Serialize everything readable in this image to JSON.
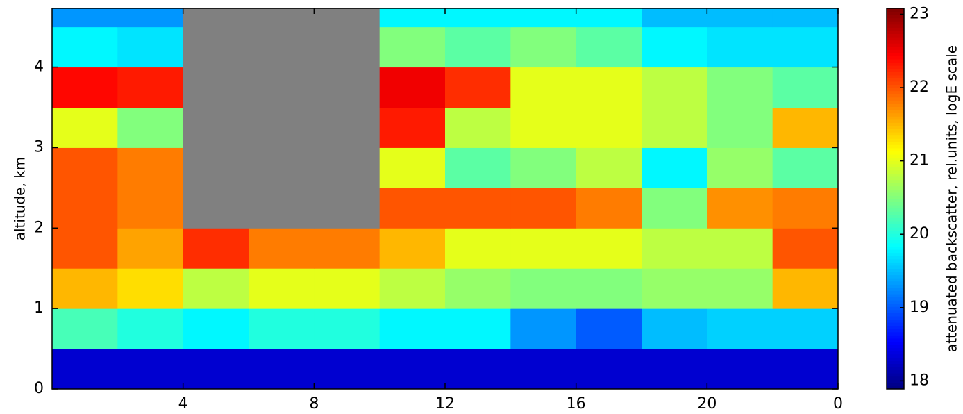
{
  "chart_data": {
    "type": "heatmap",
    "y_label": "altitude, km",
    "colorbar_label": "attenuated backscatter, rel.units, logE scale",
    "x_edges": [
      0,
      2,
      4,
      6,
      8,
      10,
      12,
      14,
      16,
      18,
      20,
      22,
      24
    ],
    "y_edges": [
      0,
      0.5,
      1,
      1.5,
      2,
      2.5,
      3,
      3.5,
      4,
      4.5,
      4.73
    ],
    "values": [
      [
        18.3,
        18.3,
        18.3,
        18.3,
        18.3,
        18.3,
        18.3,
        18.3,
        18.3,
        18.3,
        18.3,
        18.3
      ],
      [
        20.2,
        20.0,
        19.8,
        20.0,
        20.0,
        19.8,
        19.8,
        19.3,
        19.0,
        19.5,
        19.6,
        19.6
      ],
      [
        21.5,
        21.3,
        20.8,
        21.0,
        21.0,
        20.8,
        20.6,
        20.5,
        20.5,
        20.6,
        20.6,
        21.5
      ],
      [
        22.0,
        21.6,
        22.2,
        21.8,
        21.8,
        21.5,
        21.0,
        21.0,
        21.0,
        20.8,
        20.8,
        22.0
      ],
      [
        22.0,
        21.8,
        null,
        null,
        null,
        22.0,
        22.0,
        22.0,
        21.8,
        20.5,
        21.7,
        21.8
      ],
      [
        22.0,
        21.8,
        null,
        null,
        null,
        21.0,
        20.3,
        20.5,
        20.8,
        19.8,
        20.6,
        20.3
      ],
      [
        21.0,
        20.5,
        null,
        null,
        null,
        22.3,
        20.8,
        21.0,
        21.0,
        20.8,
        20.5,
        21.5
      ],
      [
        22.4,
        22.3,
        null,
        null,
        null,
        22.5,
        22.2,
        21.0,
        21.0,
        20.8,
        20.5,
        20.3
      ],
      [
        19.8,
        19.7,
        null,
        null,
        null,
        20.5,
        20.3,
        20.5,
        20.3,
        19.8,
        19.7,
        19.7
      ],
      [
        19.3,
        19.3,
        null,
        null,
        null,
        19.8,
        19.8,
        19.8,
        19.8,
        19.5,
        19.5,
        19.5
      ]
    ],
    "colormap": "jet",
    "missing_color": "#808080",
    "xlim": [
      0,
      24
    ],
    "xticks": [
      4,
      8,
      12,
      16,
      20,
      {
        "value": 24,
        "label": "0"
      }
    ],
    "ylim": [
      0,
      4.73
    ],
    "yticks": [
      0,
      1,
      2,
      3,
      4
    ],
    "clim": [
      17.89,
      23.08
    ],
    "cticks": [
      18,
      19,
      20,
      21,
      22,
      23
    ]
  }
}
